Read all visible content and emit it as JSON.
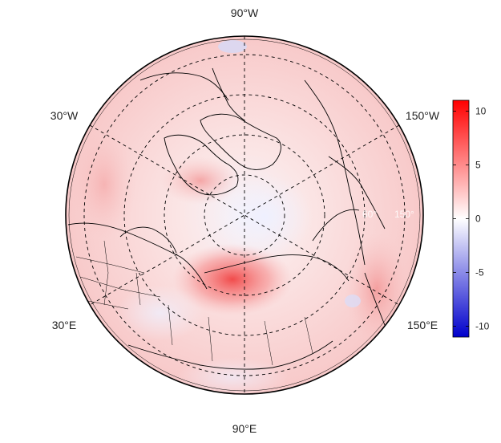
{
  "map": {
    "projection": "north-polar-stereographic",
    "longitude_labels": {
      "top": "90°W",
      "upper_left": "30°W",
      "upper_right": "150°W",
      "lower_left": "30°E",
      "lower_right": "150°E",
      "bottom": "90°E"
    },
    "ring_labels": [
      "60°",
      "150°"
    ],
    "grid": "dashed",
    "colors": {
      "positive": "#ff0000",
      "zero": "#ffffff",
      "negative": "#0000cc",
      "coast": "#000000"
    }
  },
  "colorbar": {
    "min": -11,
    "max": 11,
    "ticks": [
      "10",
      "5",
      "0",
      "-5",
      "-10"
    ],
    "tick_values": [
      10,
      5,
      0,
      -5,
      -10
    ]
  }
}
